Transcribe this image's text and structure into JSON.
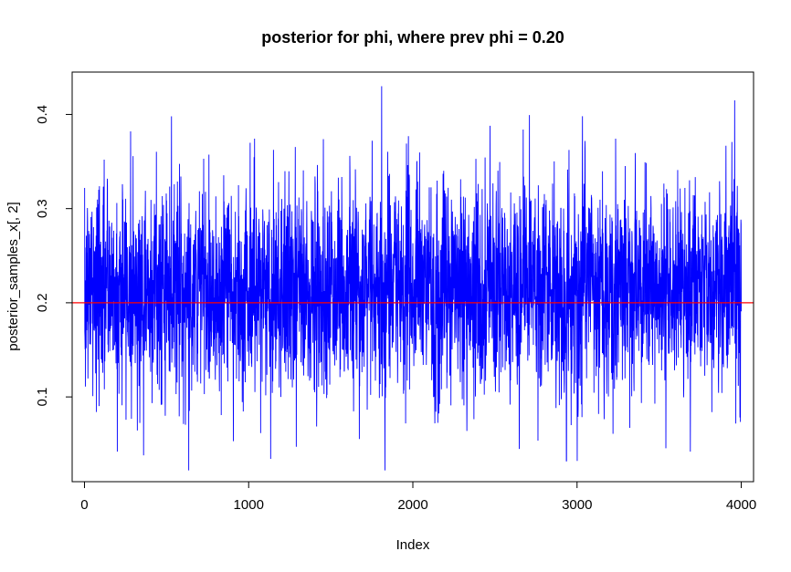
{
  "chart_data": {
    "type": "line",
    "title": "posterior for phi, where prev phi = 0.20",
    "xlabel": "Index",
    "ylabel": "posterior_samples_x[, 2]",
    "xlim": [
      -75,
      4075
    ],
    "ylim": [
      0.01,
      0.445
    ],
    "x_ticks": [
      0,
      1000,
      2000,
      3000,
      4000
    ],
    "x_tick_labels": [
      "0",
      "1000",
      "2000",
      "3000",
      "4000"
    ],
    "y_ticks": [
      0.1,
      0.2,
      0.3,
      0.4
    ],
    "y_tick_labels": [
      "0.1",
      "0.2",
      "0.3",
      "0.4"
    ],
    "grid": false,
    "series": [
      {
        "color": "#0000ff",
        "n_points": 4000,
        "mean": 0.215,
        "sd": 0.055,
        "min": 0.022,
        "max": 0.43,
        "notable_points": [
          {
            "x": 1,
            "y": 0.322
          },
          {
            "x": 200,
            "y": 0.042
          },
          {
            "x": 360,
            "y": 0.038
          },
          {
            "x": 530,
            "y": 0.398
          },
          {
            "x": 635,
            "y": 0.022
          },
          {
            "x": 1290,
            "y": 0.047
          },
          {
            "x": 1810,
            "y": 0.43
          },
          {
            "x": 1830,
            "y": 0.022
          },
          {
            "x": 2470,
            "y": 0.388
          },
          {
            "x": 3690,
            "y": 0.042
          },
          {
            "x": 3960,
            "y": 0.415
          }
        ]
      }
    ],
    "reference_line": {
      "y": 0.2,
      "color": "#ff0000"
    }
  }
}
